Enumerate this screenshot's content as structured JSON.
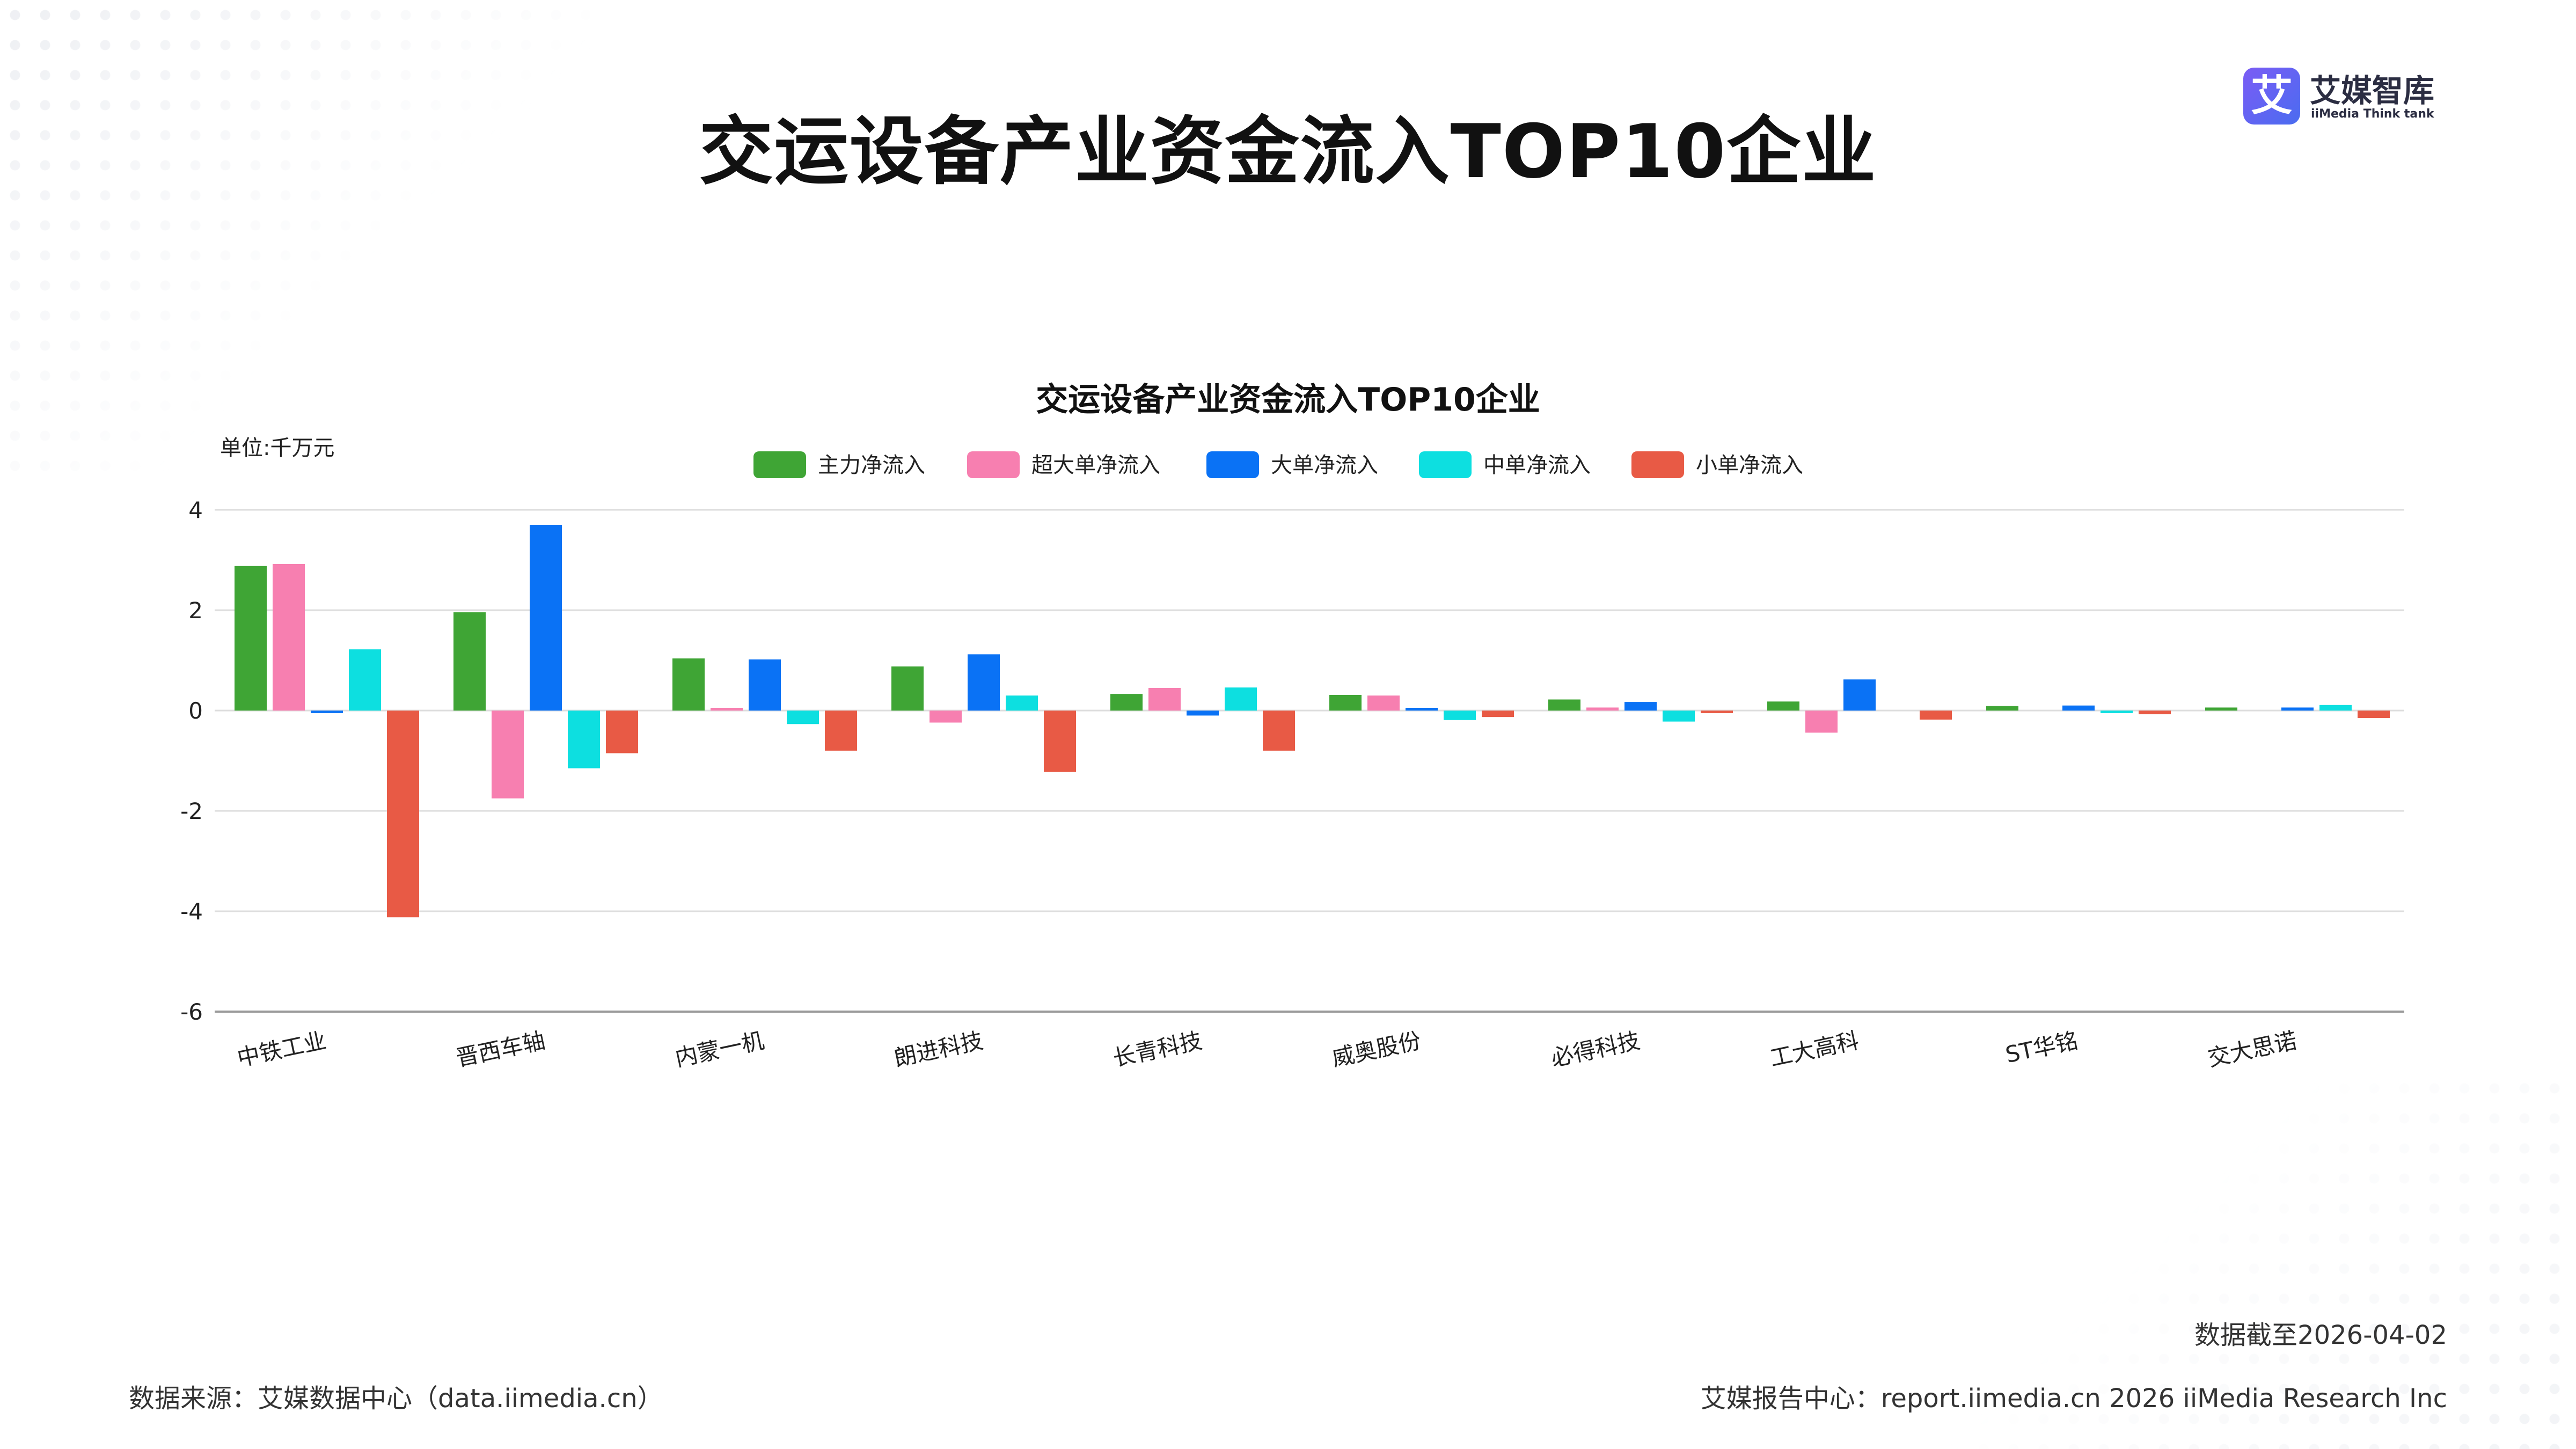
{
  "page_title": "交运设备产业资金流入TOP10企业",
  "logo": {
    "name": "艾媒智库",
    "sub": "iiMedia Think tank",
    "mark": "艾"
  },
  "footer": {
    "date": "数据截至2026-04-02",
    "source": "数据来源：艾媒数据中心（data.iimedia.cn）",
    "right": "艾媒报告中心：report.iimedia.cn   2026 iiMedia Research Inc"
  },
  "chart_data": {
    "type": "bar",
    "title": "交运设备产业资金流入TOP10企业",
    "unit": "单位:千万元",
    "xlabel": "",
    "ylabel": "",
    "ylim": [
      -6,
      4
    ],
    "yticks": [
      4,
      2,
      0,
      -2,
      -4,
      -6
    ],
    "grid": true,
    "legend_position": "top",
    "categories": [
      "中铁工业",
      "晋西车轴",
      "内蒙一机",
      "朗进科技",
      "长青科技",
      "威奥股份",
      "必得科技",
      "工大高科",
      "ST华铭",
      "交大思诺"
    ],
    "series": [
      {
        "name": "主力净流入",
        "color": "#3fa535",
        "values": [
          2.88,
          1.96,
          1.04,
          0.88,
          0.33,
          0.31,
          0.22,
          0.18,
          0.09,
          0.06
        ]
      },
      {
        "name": "超大单净流入",
        "color": "#f77fb0",
        "values": [
          2.92,
          -1.75,
          0.02,
          -0.24,
          0.45,
          0.3,
          0.06,
          -0.44,
          0.0,
          0.0
        ]
      },
      {
        "name": "大单净流入",
        "color": "#0a72f5",
        "values": [
          -0.04,
          3.7,
          1.02,
          1.12,
          -0.1,
          0.04,
          0.17,
          0.62,
          0.1,
          0.06
        ]
      },
      {
        "name": "中单净流入",
        "color": "#0ddfe0",
        "values": [
          1.22,
          -1.15,
          -0.27,
          0.3,
          0.46,
          -0.19,
          -0.22,
          0.0,
          -0.03,
          0.11
        ]
      },
      {
        "name": "小单净流入",
        "color": "#e85a45",
        "values": [
          -4.12,
          -0.85,
          -0.8,
          -1.22,
          -0.8,
          -0.13,
          -0.04,
          -0.18,
          -0.07,
          -0.15
        ]
      }
    ]
  }
}
